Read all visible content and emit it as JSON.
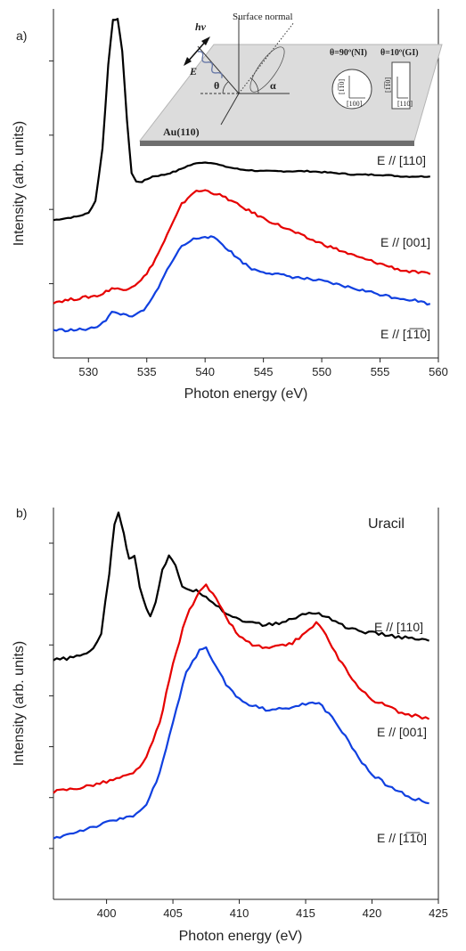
{
  "chart_data": [
    {
      "panel": "a)",
      "type": "line",
      "xlabel": "Photon energy (eV)",
      "ylabel": "Intensity (arb. units)",
      "xlim": [
        527,
        560
      ],
      "ylim": [
        0,
        100
      ],
      "x_ticks": [
        530,
        535,
        540,
        545,
        550,
        555,
        560
      ],
      "y_ticks_labeled": false,
      "grid": false,
      "annotation": "",
      "series": [
        {
          "name": "E // [110]",
          "color": "#000000",
          "points": [
            [
              527.0,
              39.5
            ],
            [
              529.0,
              40.5
            ],
            [
              530.0,
              41.5
            ],
            [
              530.6,
              45
            ],
            [
              531.2,
              60
            ],
            [
              531.7,
              84
            ],
            [
              532.1,
              97
            ],
            [
              532.5,
              97
            ],
            [
              532.9,
              88
            ],
            [
              533.3,
              68
            ],
            [
              533.7,
              53
            ],
            [
              534.1,
              50.5
            ],
            [
              534.6,
              50.5
            ],
            [
              535.5,
              52
            ],
            [
              536.5,
              52.5
            ],
            [
              537.5,
              53.5
            ],
            [
              538.5,
              55
            ],
            [
              539.5,
              56
            ],
            [
              540.5,
              56
            ],
            [
              541.5,
              55
            ],
            [
              543,
              54
            ],
            [
              545,
              53.5
            ],
            [
              547,
              53.5
            ],
            [
              549,
              53.5
            ],
            [
              551,
              53
            ],
            [
              553,
              52.5
            ],
            [
              555,
              52.5
            ],
            [
              557,
              52
            ],
            [
              559.3,
              52
            ]
          ]
        },
        {
          "name": "E // [001]",
          "color": "#e60000",
          "points": [
            [
              527.0,
              16
            ],
            [
              529.0,
              17
            ],
            [
              531.0,
              18
            ],
            [
              532.0,
              20
            ],
            [
              533.0,
              19.5
            ],
            [
              534.0,
              21
            ],
            [
              535.0,
              24
            ],
            [
              536.0,
              30
            ],
            [
              537.0,
              37
            ],
            [
              538.0,
              44
            ],
            [
              539.0,
              47.5
            ],
            [
              540.0,
              48
            ],
            [
              541.0,
              47
            ],
            [
              542.0,
              45.5
            ],
            [
              543.0,
              43.5
            ],
            [
              545.0,
              40
            ],
            [
              547.0,
              37
            ],
            [
              549.0,
              34
            ],
            [
              551.0,
              31.5
            ],
            [
              553.0,
              29
            ],
            [
              555.0,
              27
            ],
            [
              557.0,
              25
            ],
            [
              559.3,
              24
            ]
          ]
        },
        {
          "name": "E // [1̅1̅0]",
          "color": "#1040e0",
          "points": [
            [
              527.0,
              8
            ],
            [
              529.0,
              8
            ],
            [
              530.5,
              8.5
            ],
            [
              531.5,
              11
            ],
            [
              532.0,
              13
            ],
            [
              533.0,
              12.5
            ],
            [
              534.0,
              12
            ],
            [
              535.0,
              14.5
            ],
            [
              536.0,
              20
            ],
            [
              537.0,
              27
            ],
            [
              538.0,
              32
            ],
            [
              539.0,
              34
            ],
            [
              540.0,
              35
            ],
            [
              541.0,
              34
            ],
            [
              542.0,
              31
            ],
            [
              543.0,
              28
            ],
            [
              544.0,
              25.5
            ],
            [
              546.0,
              24
            ],
            [
              548.0,
              23
            ],
            [
              550.0,
              22
            ],
            [
              552.0,
              20.5
            ],
            [
              554.0,
              19
            ],
            [
              556.0,
              17.5
            ],
            [
              558.0,
              16.5
            ],
            [
              559.3,
              15.5
            ]
          ]
        }
      ],
      "series_labels": [
        "E // [110]",
        "E // [001]",
        "E // [1̅1̅0]"
      ],
      "inset": {
        "incoming": "hν",
        "field": "E",
        "normal": "Surface normal",
        "angle_theta": "θ",
        "angle_alpha": "α",
        "surface": "Au(110)",
        "ni_label": "θ=90º(NI)",
        "gi_label": "θ=10º(GI)",
        "ni_vertical": "[1̅1̅0]",
        "ni_horizontal": "[100]",
        "gi_vertical": "[1̅1̅0]",
        "gi_horizontal": "[110]"
      }
    },
    {
      "panel": "b)",
      "type": "line",
      "xlabel": "Photon energy (eV)",
      "ylabel": "Intensity (arb. units)",
      "xlim": [
        396,
        425
      ],
      "ylim": [
        0,
        100
      ],
      "x_ticks": [
        400,
        405,
        410,
        415,
        420,
        425
      ],
      "y_ticks_labeled": false,
      "grid": false,
      "annotation": "Uracil",
      "series": [
        {
          "name": "E // [110]",
          "color": "#000000",
          "points": [
            [
              396.0,
              61
            ],
            [
              398.0,
              62
            ],
            [
              399.0,
              64
            ],
            [
              399.6,
              68
            ],
            [
              400.2,
              83
            ],
            [
              400.6,
              96
            ],
            [
              400.9,
              99
            ],
            [
              401.3,
              93
            ],
            [
              401.7,
              87
            ],
            [
              402.1,
              88
            ],
            [
              402.5,
              80
            ],
            [
              403.0,
              74
            ],
            [
              403.3,
              72.5
            ],
            [
              403.7,
              76
            ],
            [
              404.2,
              84
            ],
            [
              404.7,
              87.5
            ],
            [
              405.2,
              85
            ],
            [
              405.7,
              80
            ],
            [
              406.3,
              79
            ],
            [
              407.0,
              78.5
            ],
            [
              408.0,
              76
            ],
            [
              409.0,
              73
            ],
            [
              410.0,
              71.5
            ],
            [
              411.0,
              70.5
            ],
            [
              412.0,
              70
            ],
            [
              413.0,
              70.5
            ],
            [
              414.0,
              71.5
            ],
            [
              415.0,
              73
            ],
            [
              416.0,
              73
            ],
            [
              417.0,
              71.5
            ],
            [
              418.0,
              69.5
            ],
            [
              419.0,
              68.5
            ],
            [
              420.0,
              68
            ],
            [
              421.0,
              67.5
            ],
            [
              422.0,
              67
            ],
            [
              423.0,
              66.5
            ],
            [
              424.3,
              66
            ]
          ]
        },
        {
          "name": "E // [001]",
          "color": "#e60000",
          "points": [
            [
              396.0,
              27.5
            ],
            [
              398.0,
              28.5
            ],
            [
              400.0,
              30
            ],
            [
              402.0,
              32
            ],
            [
              403.0,
              36
            ],
            [
              404.0,
              45
            ],
            [
              405.0,
              60
            ],
            [
              406.0,
              72
            ],
            [
              407.0,
              79
            ],
            [
              407.5,
              80
            ],
            [
              408.0,
              78
            ],
            [
              409.0,
              72
            ],
            [
              410.0,
              67
            ],
            [
              411.0,
              65
            ],
            [
              412.0,
              64
            ],
            [
              413.0,
              64.5
            ],
            [
              414.0,
              65.5
            ],
            [
              415.0,
              68
            ],
            [
              415.8,
              70.5
            ],
            [
              416.3,
              69
            ],
            [
              417.0,
              64
            ],
            [
              418.0,
              59
            ],
            [
              419.0,
              54
            ],
            [
              420.0,
              51
            ],
            [
              421.0,
              49.5
            ],
            [
              422.0,
              48
            ],
            [
              423.0,
              47
            ],
            [
              424.3,
              46
            ]
          ]
        },
        {
          "name": "E // [1̅1̅0]",
          "color": "#1040e0",
          "points": [
            [
              396.0,
              15.5
            ],
            [
              398.0,
              17.5
            ],
            [
              400.0,
              19.5
            ],
            [
              402.0,
              21.5
            ],
            [
              403.0,
              24
            ],
            [
              404.0,
              32
            ],
            [
              405.0,
              45
            ],
            [
              406.0,
              58
            ],
            [
              407.0,
              63.5
            ],
            [
              407.5,
              64
            ],
            [
              408.0,
              61
            ],
            [
              409.0,
              55
            ],
            [
              410.0,
              51
            ],
            [
              411.0,
              49.5
            ],
            [
              412.0,
              48.5
            ],
            [
              413.0,
              48.5
            ],
            [
              414.0,
              49
            ],
            [
              415.0,
              50
            ],
            [
              416.0,
              50
            ],
            [
              417.0,
              46.5
            ],
            [
              418.0,
              41.5
            ],
            [
              419.0,
              36
            ],
            [
              420.0,
              32
            ],
            [
              421.0,
              29.5
            ],
            [
              422.0,
              27.5
            ],
            [
              423.0,
              26
            ],
            [
              424.3,
              24.5
            ]
          ]
        }
      ],
      "series_labels": [
        "E // [110]",
        "E // [001]",
        "E // [1̅1̅0]"
      ]
    }
  ]
}
